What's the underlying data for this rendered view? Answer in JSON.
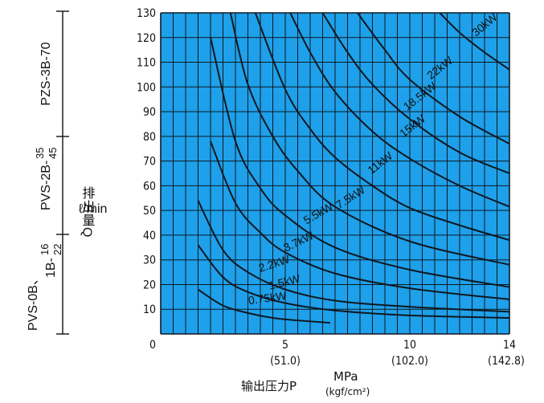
{
  "colors": {
    "plot_bg": "#1ea0ea",
    "grid": "#101820",
    "curve": "#101820",
    "text": "#111111"
  },
  "chart_data": {
    "type": "line",
    "title": "",
    "xlabel": "输出压力P",
    "xunit_top": "MPa",
    "xunit_bottom": "(kgf/cm²)",
    "ylabel_main": "排出量Q",
    "ylabel_unit": "ℓ/min",
    "xlim": [
      0,
      14
    ],
    "ylim": [
      0,
      130
    ],
    "grid": true,
    "x_ticks": [
      {
        "value": 0,
        "label": "0",
        "sub": ""
      },
      {
        "value": 5,
        "label": "5",
        "sub": "(51.0)"
      },
      {
        "value": 10,
        "label": "10",
        "sub": "(102.0)"
      },
      {
        "value": 14,
        "label": "14",
        "sub": "(142.8)"
      }
    ],
    "y_ticks": [
      10,
      20,
      30,
      40,
      50,
      60,
      70,
      80,
      90,
      100,
      110,
      120,
      130
    ],
    "series": [
      {
        "name": "0.75kW",
        "x": [
          1.5,
          2.5,
          3.5,
          4.5,
          5.5,
          6.8
        ],
        "y": [
          18,
          11.5,
          8.5,
          6.5,
          5.5,
          4.5
        ]
      },
      {
        "name": "1.5kW",
        "x": [
          1.5,
          2.5,
          3.5,
          5,
          7,
          10,
          14
        ],
        "y": [
          36,
          23,
          17,
          12.5,
          9.5,
          7.5,
          6.5
        ]
      },
      {
        "name": "2.2kW",
        "x": [
          1.5,
          2.5,
          3.5,
          5,
          7,
          10,
          14
        ],
        "y": [
          54,
          34,
          25,
          18,
          13.5,
          11,
          9
        ]
      },
      {
        "name": "3.7kW",
        "x": [
          2,
          3,
          4,
          5,
          7,
          10,
          14
        ],
        "y": [
          78,
          53,
          41,
          33,
          24.5,
          18.5,
          14
        ]
      },
      {
        "name": "5.5kW",
        "x": [
          2,
          3,
          4,
          5,
          7,
          10,
          14
        ],
        "y": [
          120,
          78,
          59,
          48,
          35,
          26,
          19
        ]
      },
      {
        "name": "7.5kW",
        "x": [
          2.8,
          3.5,
          4.5,
          5.5,
          7,
          10,
          14
        ],
        "y": [
          130,
          101,
          80,
          66,
          51.5,
          37.5,
          28
        ]
      },
      {
        "name": "11kW",
        "x": [
          3.8,
          5,
          6,
          7,
          8.5,
          10,
          12,
          14
        ],
        "y": [
          130,
          99,
          83,
          71.5,
          60,
          51,
          44,
          38
        ]
      },
      {
        "name": "15kW",
        "x": [
          5.2,
          6,
          7,
          8.5,
          10,
          12,
          14
        ],
        "y": [
          130,
          114,
          98,
          82,
          71,
          60,
          51.5
        ]
      },
      {
        "name": "18.5kW",
        "x": [
          6.5,
          7.5,
          8.5,
          10,
          12,
          14
        ],
        "y": [
          130,
          114,
          101,
          87,
          73.5,
          65
        ]
      },
      {
        "name": "22kW",
        "x": [
          7.9,
          9,
          10,
          12,
          14
        ],
        "y": [
          130,
          115,
          103,
          88,
          77
        ]
      },
      {
        "name": "30kW",
        "x": [
          11.2,
          12,
          13,
          14
        ],
        "y": [
          130,
          122,
          114,
          107
        ]
      }
    ],
    "series_labels": [
      {
        "text": "0.75kW",
        "x": 4.3,
        "y": 13,
        "angle": -8
      },
      {
        "text": "1.5kW",
        "x": 5.0,
        "y": 19.5,
        "angle": -14
      },
      {
        "text": "2.2kW",
        "x": 4.6,
        "y": 27,
        "angle": -18
      },
      {
        "text": "3.7kW",
        "x": 5.6,
        "y": 36,
        "angle": -26
      },
      {
        "text": "5.5kW",
        "x": 6.4,
        "y": 47.5,
        "angle": -30
      },
      {
        "text": "7.5kW",
        "x": 7.7,
        "y": 54,
        "angle": -33
      },
      {
        "text": "11kW",
        "x": 8.9,
        "y": 68,
        "angle": -38
      },
      {
        "text": "15kW",
        "x": 10.2,
        "y": 83,
        "angle": -38
      },
      {
        "text": "18.5kW",
        "x": 10.5,
        "y": 95,
        "angle": -38
      },
      {
        "text": "22kW",
        "x": 11.3,
        "y": 106.5,
        "angle": -38
      },
      {
        "text": "30kW",
        "x": 13.1,
        "y": 124,
        "angle": -40
      }
    ]
  },
  "side_labels": {
    "pump_3": "PZS-3B-70",
    "pump_2_main": "PVS-2B-",
    "pump_2_frac_top": "35",
    "pump_2_frac_bottom": "45",
    "pump_1_main": "PVS-0B、",
    "pump_1_sub": "1B-",
    "pump_1_frac_top": "16",
    "pump_1_frac_bottom": "22"
  }
}
